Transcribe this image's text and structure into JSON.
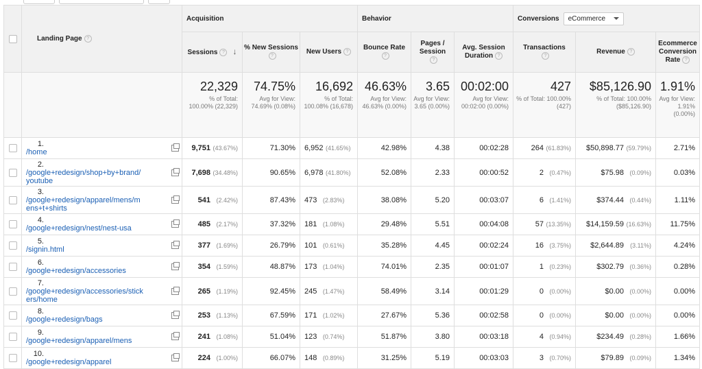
{
  "header": {
    "landing_page": "Landing Page",
    "acquisition": "Acquisition",
    "behavior": "Behavior",
    "conversions": "Conversions",
    "conversion_select": "eCommerce",
    "col_sessions": "Sessions",
    "col_new_sessions": "% New Sessions",
    "col_new_users": "New Users",
    "col_bounce": "Bounce Rate",
    "col_pages": "Pages / Session",
    "col_duration": "Avg. Session Duration",
    "col_transactions": "Transactions",
    "col_revenue": "Revenue",
    "col_ecr": "Ecommerce Conversion Rate"
  },
  "totals": {
    "sessions": "22,329",
    "sessions_sub": "% of Total: 100.00% (22,329)",
    "new_sessions": "74.75%",
    "new_sessions_sub": "Avg for View: 74.69% (0.08%)",
    "new_users": "16,692",
    "new_users_sub": "% of Total: 100.08% (16,678)",
    "bounce": "46.63%",
    "bounce_sub": "Avg for View: 46.63% (0.00%)",
    "pages": "3.65",
    "pages_sub": "Avg for View: 3.65 (0.00%)",
    "duration": "00:02:00",
    "duration_sub": "Avg for View: 00:02:00 (0.00%)",
    "transactions": "427",
    "transactions_sub": "% of Total: 100.00% (427)",
    "revenue": "$85,126.90",
    "revenue_sub": "% of Total: 100.00% ($85,126.90)",
    "ecr": "1.91%",
    "ecr_sub": "Avg for View: 1.91% (0.00%)"
  },
  "rows": [
    {
      "idx": "1.",
      "page": "/home",
      "sessions": "9,751",
      "sessions_pct": "(43.67%)",
      "new_sessions": "71.30%",
      "new_users": "6,952",
      "new_users_pct": "(41.65%)",
      "bounce": "42.98%",
      "pages": "4.38",
      "duration": "00:02:28",
      "transactions": "264",
      "transactions_pct": "(61.83%)",
      "revenue": "$50,898.77",
      "revenue_pct": "(59.79%)",
      "ecr": "2.71%"
    },
    {
      "idx": "2.",
      "page": "/google+redesign/shop+by+brand/youtube",
      "sessions": "7,698",
      "sessions_pct": "(34.48%)",
      "new_sessions": "90.65%",
      "new_users": "6,978",
      "new_users_pct": "(41.80%)",
      "bounce": "52.08%",
      "pages": "2.33",
      "duration": "00:00:52",
      "transactions": "2",
      "transactions_pct": "(0.47%)",
      "revenue": "$75.98",
      "revenue_pct": "(0.09%)",
      "ecr": "0.03%"
    },
    {
      "idx": "3.",
      "page": "/google+redesign/apparel/mens/mens+t+shirts",
      "sessions": "541",
      "sessions_pct": "(2.42%)",
      "new_sessions": "87.43%",
      "new_users": "473",
      "new_users_pct": "(2.83%)",
      "bounce": "38.08%",
      "pages": "5.20",
      "duration": "00:03:07",
      "transactions": "6",
      "transactions_pct": "(1.41%)",
      "revenue": "$374.44",
      "revenue_pct": "(0.44%)",
      "ecr": "1.11%"
    },
    {
      "idx": "4.",
      "page": "/google+redesign/nest/nest-usa",
      "sessions": "485",
      "sessions_pct": "(2.17%)",
      "new_sessions": "37.32%",
      "new_users": "181",
      "new_users_pct": "(1.08%)",
      "bounce": "29.48%",
      "pages": "5.51",
      "duration": "00:04:08",
      "transactions": "57",
      "transactions_pct": "(13.35%)",
      "revenue": "$14,159.59",
      "revenue_pct": "(16.63%)",
      "ecr": "11.75%"
    },
    {
      "idx": "5.",
      "page": "/signin.html",
      "sessions": "377",
      "sessions_pct": "(1.69%)",
      "new_sessions": "26.79%",
      "new_users": "101",
      "new_users_pct": "(0.61%)",
      "bounce": "35.28%",
      "pages": "4.45",
      "duration": "00:02:24",
      "transactions": "16",
      "transactions_pct": "(3.75%)",
      "revenue": "$2,644.89",
      "revenue_pct": "(3.11%)",
      "ecr": "4.24%"
    },
    {
      "idx": "6.",
      "page": "/google+redesign/accessories",
      "sessions": "354",
      "sessions_pct": "(1.59%)",
      "new_sessions": "48.87%",
      "new_users": "173",
      "new_users_pct": "(1.04%)",
      "bounce": "74.01%",
      "pages": "2.35",
      "duration": "00:01:07",
      "transactions": "1",
      "transactions_pct": "(0.23%)",
      "revenue": "$302.79",
      "revenue_pct": "(0.36%)",
      "ecr": "0.28%"
    },
    {
      "idx": "7.",
      "page": "/google+redesign/accessories/stickers/home",
      "sessions": "265",
      "sessions_pct": "(1.19%)",
      "new_sessions": "92.45%",
      "new_users": "245",
      "new_users_pct": "(1.47%)",
      "bounce": "58.49%",
      "pages": "3.14",
      "duration": "00:01:29",
      "transactions": "0",
      "transactions_pct": "(0.00%)",
      "revenue": "$0.00",
      "revenue_pct": "(0.00%)",
      "ecr": "0.00%"
    },
    {
      "idx": "8.",
      "page": "/google+redesign/bags",
      "sessions": "253",
      "sessions_pct": "(1.13%)",
      "new_sessions": "67.59%",
      "new_users": "171",
      "new_users_pct": "(1.02%)",
      "bounce": "27.67%",
      "pages": "5.36",
      "duration": "00:02:58",
      "transactions": "0",
      "transactions_pct": "(0.00%)",
      "revenue": "$0.00",
      "revenue_pct": "(0.00%)",
      "ecr": "0.00%"
    },
    {
      "idx": "9.",
      "page": "/google+redesign/apparel/mens",
      "sessions": "241",
      "sessions_pct": "(1.08%)",
      "new_sessions": "51.04%",
      "new_users": "123",
      "new_users_pct": "(0.74%)",
      "bounce": "51.87%",
      "pages": "3.80",
      "duration": "00:03:18",
      "transactions": "4",
      "transactions_pct": "(0.94%)",
      "revenue": "$234.49",
      "revenue_pct": "(0.28%)",
      "ecr": "1.66%"
    },
    {
      "idx": "10.",
      "page": "/google+redesign/apparel",
      "sessions": "224",
      "sessions_pct": "(1.00%)",
      "new_sessions": "66.07%",
      "new_users": "148",
      "new_users_pct": "(0.89%)",
      "bounce": "31.25%",
      "pages": "5.19",
      "duration": "00:03:03",
      "transactions": "3",
      "transactions_pct": "(0.70%)",
      "revenue": "$79.89",
      "revenue_pct": "(0.09%)",
      "ecr": "1.34%"
    }
  ]
}
